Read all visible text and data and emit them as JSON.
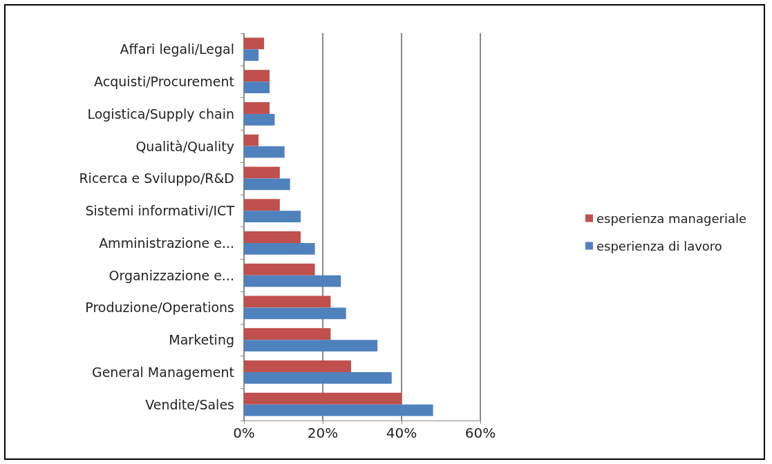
{
  "chart_data": {
    "type": "bar",
    "orientation": "horizontal",
    "categories": [
      "Affari legali/Legal",
      "Acquisti/Procurement",
      "Logistica/Supply chain",
      "Qualità/Quality",
      "Ricerca e Sviluppo/R&D",
      "Sistemi informativi/ICT",
      "Amministrazione e...",
      "Organizzazione e...",
      "Produzione/Operations",
      "Marketing",
      "General Management",
      "Vendite/Sales"
    ],
    "series": [
      {
        "name": "esperienza manageriale",
        "color": "#c0504d",
        "values": [
          5.1,
          6.5,
          6.5,
          3.7,
          9.1,
          9.1,
          14.4,
          18,
          22,
          22,
          27.2,
          40
        ]
      },
      {
        "name": "esperienza di lavoro",
        "color": "#4f81bd",
        "values": [
          3.7,
          6.5,
          7.8,
          10.3,
          11.7,
          14.4,
          18,
          24.6,
          25.9,
          33.9,
          37.5,
          48
        ]
      }
    ],
    "xlim": [
      0,
      60
    ],
    "xticks": [
      {
        "value": 0,
        "label": "0%"
      },
      {
        "value": 20,
        "label": "20%"
      },
      {
        "value": 40,
        "label": "40%"
      },
      {
        "value": 60,
        "label": "60%"
      }
    ],
    "grid": "x",
    "legend": "right"
  }
}
